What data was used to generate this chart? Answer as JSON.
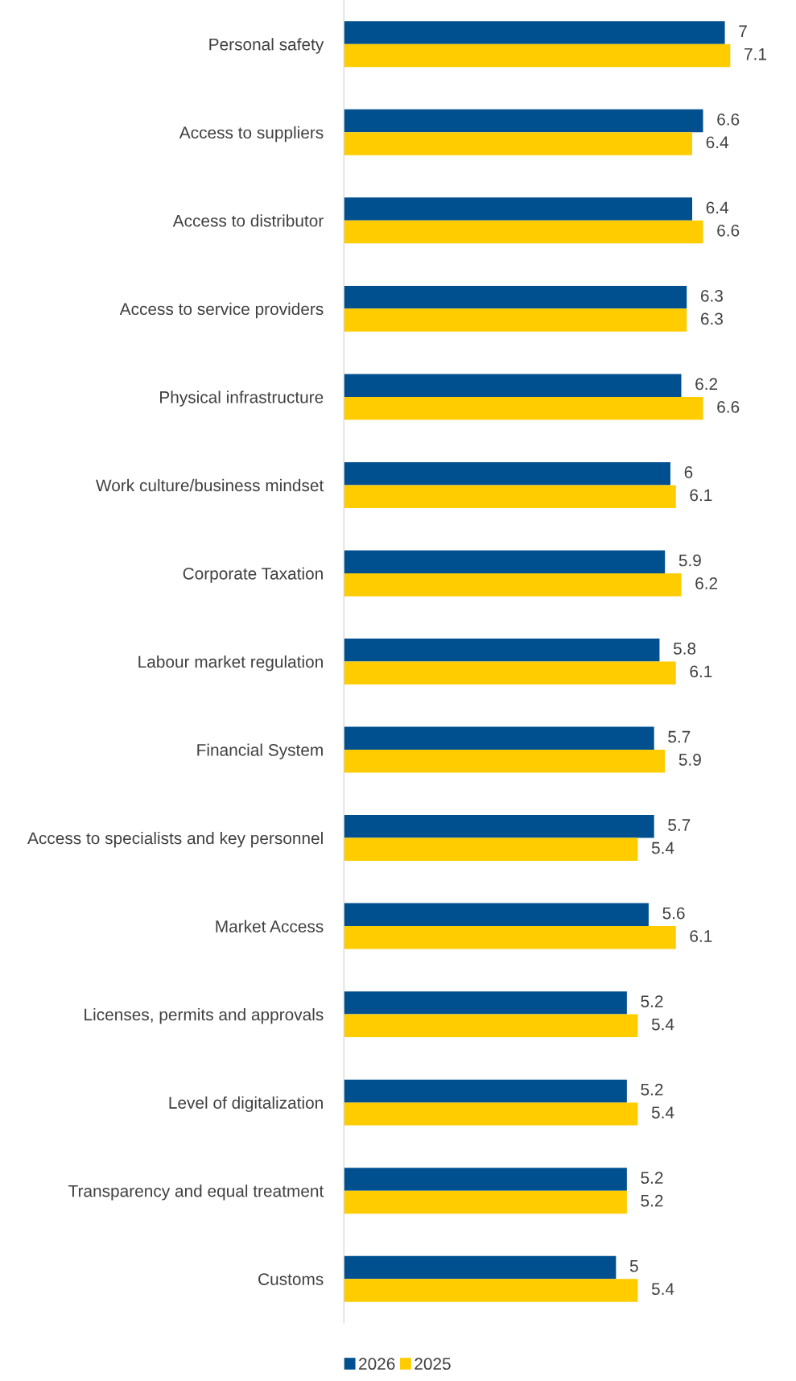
{
  "chart_data": {
    "type": "bar",
    "orientation": "horizontal",
    "data_labels": true,
    "legend": "bottom",
    "grid": false,
    "categories": [
      "Personal safety",
      "Access to suppliers",
      "Access to distributor",
      "Access to service providers",
      "Physical infrastructure",
      "Work culture/business mindset",
      "Corporate Taxation",
      "Labour market regulation",
      "Financial System",
      "Access to specialists and key personnel",
      "Market Access",
      "Licenses, permits and approvals",
      "Level of digitalization",
      "Transparency and equal treatment",
      "Customs"
    ],
    "series": [
      {
        "name": "2026",
        "color": "#00508f",
        "values": [
          7,
          6.6,
          6.4,
          6.3,
          6.2,
          6,
          5.9,
          5.8,
          5.7,
          5.7,
          5.6,
          5.2,
          5.2,
          5.2,
          5
        ]
      },
      {
        "name": "2025",
        "color": "#ffcc00",
        "values": [
          7.1,
          6.4,
          6.6,
          6.3,
          6.6,
          6.1,
          6.2,
          6.1,
          5.9,
          5.4,
          6.1,
          5.4,
          5.4,
          5.2,
          5.4
        ]
      }
    ]
  }
}
